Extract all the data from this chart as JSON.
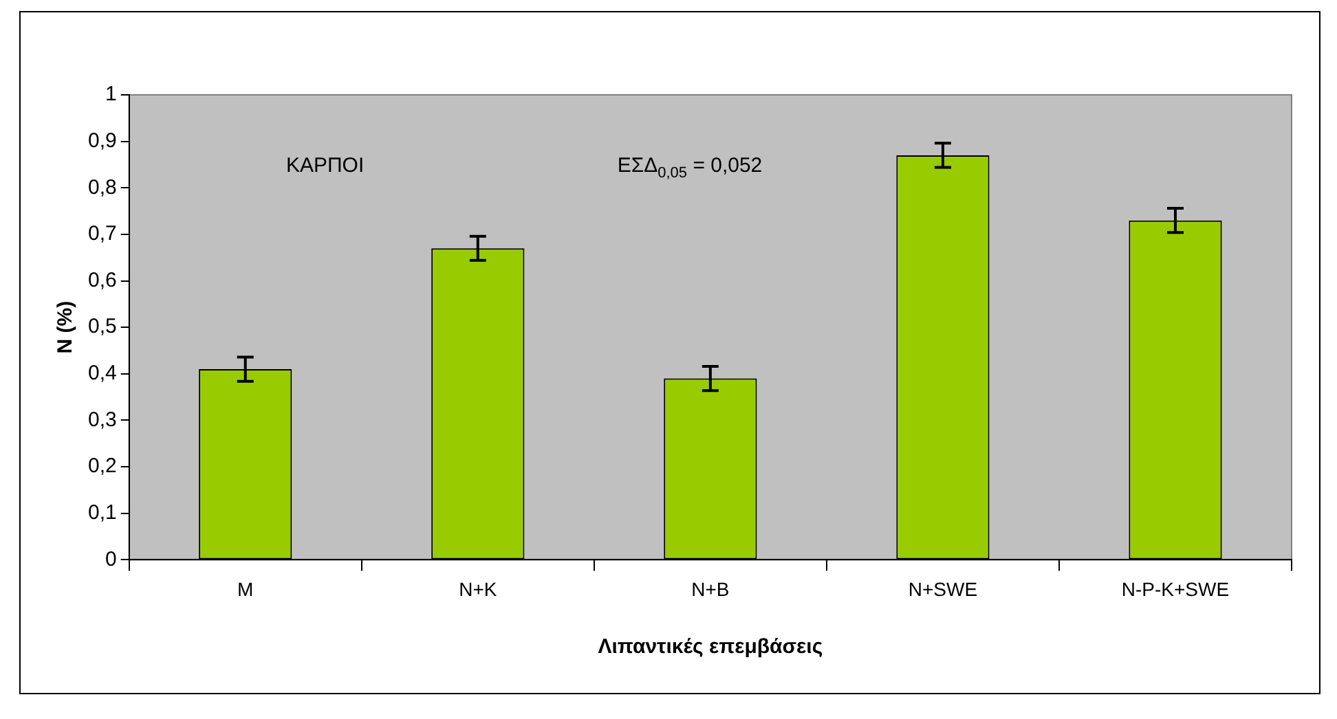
{
  "chart_data": {
    "type": "bar",
    "xlabel": "Λιπαντικές επεμβάσεις",
    "ylabel": "N (%)",
    "categories": [
      "M",
      "N+K",
      "N+B",
      "N+SWE",
      "N-P-K+SWE"
    ],
    "values": [
      0.41,
      0.67,
      0.39,
      0.87,
      0.73
    ],
    "errors": [
      0.026,
      0.026,
      0.026,
      0.026,
      0.026
    ],
    "color": "#99cc00",
    "ylim": [
      0,
      1
    ],
    "yticks": [
      0,
      {
        "value": 0.1,
        "label": "0,1"
      },
      {
        "value": 0.2,
        "label": "0,2"
      },
      {
        "value": 0.3,
        "label": "0,3"
      },
      {
        "value": 0.4,
        "label": "0,4"
      },
      {
        "value": 0.5,
        "label": "0,5"
      },
      {
        "value": 0.6,
        "label": "0,6"
      },
      {
        "value": 0.7,
        "label": "0,7"
      },
      {
        "value": 0.8,
        "label": "0,8"
      },
      {
        "value": 0.9,
        "label": "0,9"
      },
      1
    ],
    "annotations": [
      "ΚΑΡΠΟΙ",
      "ΕΣΔ$_{0,05}$ = 0,052"
    ],
    "grid": false,
    "legend": false
  }
}
